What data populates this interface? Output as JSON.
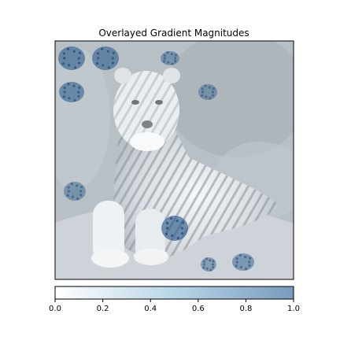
{
  "chart_data": {
    "type": "heatmap",
    "title": "Overlayed Gradient Magnitudes",
    "image_subject": "tiger",
    "xticks": [],
    "yticks": [],
    "colorbar": {
      "orientation": "horizontal",
      "range": [
        0.0,
        1.0
      ],
      "ticks": [
        0.0,
        0.2,
        0.4,
        0.6,
        0.8,
        1.0
      ],
      "tick_labels": [
        "0.0",
        "0.2",
        "0.4",
        "0.6",
        "0.8",
        "1.0"
      ],
      "color_low": "#ffffff",
      "color_mid": "#b7d6e6",
      "color_high": "#7a9abf"
    },
    "highlight_regions": [
      {
        "name": "top-left-corner-1",
        "value": 0.85
      },
      {
        "name": "top-left-corner-2",
        "value": 0.8
      },
      {
        "name": "upper-left",
        "value": 0.75
      },
      {
        "name": "top-center",
        "value": 0.45
      },
      {
        "name": "upper-right",
        "value": 0.4
      },
      {
        "name": "left-mid",
        "value": 0.5
      },
      {
        "name": "bottom-center-paw",
        "value": 0.9
      },
      {
        "name": "bottom-right",
        "value": 0.55
      },
      {
        "name": "bottom-left",
        "value": 0.45
      }
    ]
  },
  "colors": {
    "background": "#ffffff",
    "image_base": "#a9b2ba",
    "image_light": "#eef0f3",
    "image_dark": "#5f6870",
    "highlight": "#2e5d8c"
  }
}
